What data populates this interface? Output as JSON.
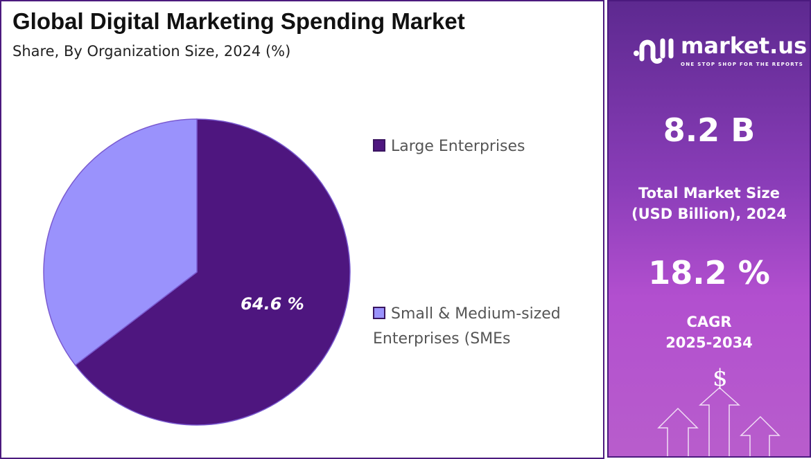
{
  "chart_data": {
    "type": "pie",
    "title": "Global Digital Marketing Spending Market",
    "subtitle": "Share, By Organization Size, 2024 (%)",
    "slices": [
      {
        "name": "Large Enterprises",
        "value": 64.6,
        "label": "64.6 %",
        "color": "#4e167f"
      },
      {
        "name": "Small & Medium-sized Enterprises (SMEs",
        "value": 35.4,
        "color": "#9a92fc"
      }
    ],
    "legend_position": "right"
  },
  "legend": {
    "item0": "Large Enterprises",
    "item1a": "Small & Medium-sized",
    "item1b": "Enterprises (SMEs"
  },
  "side": {
    "brand": "market.us",
    "tagline": "ONE STOP SHOP FOR THE REPORTS",
    "market_size": "8.2 B",
    "market_size_label1": "Total Market Size",
    "market_size_label2": "(USD Billion), 2024",
    "cagr": "18.2 %",
    "cagr_label1": "CAGR",
    "cagr_label2": "2025-2034",
    "dollar": "$"
  }
}
